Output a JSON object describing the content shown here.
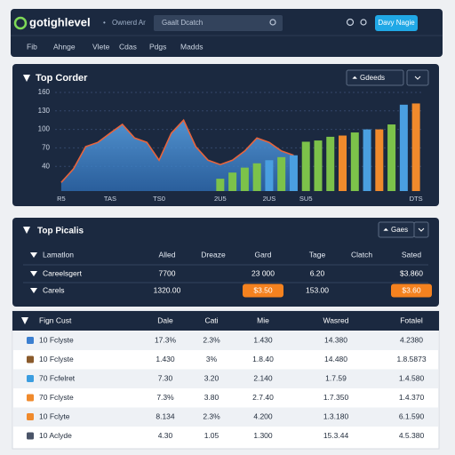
{
  "nav": {
    "brand": "gotighlevel",
    "separator": "•",
    "context": "Ownerd Ar",
    "search": "Gaalt Dcatch",
    "button": "Davy Nagie",
    "tabs": [
      "Fib",
      "Ahnge",
      "Vlete",
      "Cdas",
      "Pdgs",
      "Madds"
    ]
  },
  "panel1": {
    "title": "Top Corder",
    "button": "Gdeeds",
    "chart": {
      "type": "combo",
      "categories": [
        "R5",
        null,
        null,
        null,
        "TAS",
        null,
        null,
        null,
        "TS0",
        null,
        null,
        null,
        null,
        "2U5",
        null,
        null,
        null,
        "2US",
        null,
        null,
        "SU5",
        null,
        null,
        null,
        null,
        null,
        null,
        null,
        null,
        "DTS"
      ],
      "series": [
        {
          "type": "area",
          "color": "#4a8fd6",
          "line_color": "#e8643c",
          "values": [
            14,
            36,
            72,
            79,
            94,
            108,
            86,
            79,
            50,
            94,
            115,
            72,
            50,
            43,
            50,
            65,
            86,
            79,
            65,
            58,
            null,
            null,
            null,
            null,
            null,
            null,
            null,
            null,
            null,
            null
          ]
        },
        {
          "type": "bar",
          "colors": [
            null,
            null,
            null,
            null,
            null,
            null,
            null,
            null,
            null,
            null,
            null,
            null,
            null,
            "#7cc24a",
            "#7cc24a",
            "#7cc24a",
            "#7cc24a",
            "#4a9fe0",
            "#7cc24a",
            "#4a9fe0",
            "#7cc24a",
            "#7cc24a",
            "#7cc24a",
            "#f08a2c",
            "#7cc24a",
            "#4a9fe0",
            "#f08a2c",
            "#7cc24a",
            "#4a9fe0",
            "#f08a2c"
          ],
          "values": [
            null,
            null,
            null,
            null,
            null,
            null,
            null,
            null,
            null,
            null,
            null,
            null,
            null,
            20,
            30,
            38,
            45,
            50,
            55,
            58,
            80,
            82,
            88,
            90,
            95,
            100,
            100,
            108,
            140,
            142
          ]
        }
      ],
      "ylim": [
        0,
        170
      ],
      "yticks": [
        40,
        70,
        100,
        130,
        160
      ],
      "grid": true
    }
  },
  "panel2": {
    "title": "Top Picalis",
    "button": "Gaes",
    "columns": [
      "Lamatlon",
      "Alled",
      "Dreaze",
      "Gard",
      "Tage",
      "Clatch",
      "Sated"
    ],
    "rows": [
      [
        "Careelsgert",
        "7700",
        null,
        "23 000",
        "6.20",
        null,
        "$3.860"
      ],
      [
        "Carels",
        "1320.00",
        null,
        {
          "text": "$3.50",
          "fill": "#f5821f"
        },
        "153.00",
        null,
        {
          "text": "$3.60",
          "fill": "#f5821f"
        }
      ]
    ]
  },
  "panel3": {
    "columns": [
      "Fign Cust",
      "Dale",
      "Cati",
      "Mie",
      "Wasred",
      "Fotalel"
    ],
    "rows": [
      [
        "10 Fclyste",
        "17.3%",
        "2.3%",
        "1.430",
        "14.380",
        "4.2380"
      ],
      [
        "10 Fclyste",
        "1.430",
        "3%",
        "1.8.40",
        "14.480",
        "1.8.5873"
      ],
      [
        "70 Fcfelret",
        "7.30",
        "3.20",
        "2.140",
        "1.7.59",
        "1.4.580"
      ],
      [
        "70 Fclyste",
        "7.3%",
        "3.80",
        "2.7.40",
        "1.7.350",
        "1.4.370"
      ],
      [
        "10 Fclyte",
        "8.134",
        "2.3%",
        "4.200",
        "1.3.180",
        "6.1.590"
      ],
      [
        "10 Aclyde",
        "4.30",
        "1.05",
        "1.300",
        "15.3.44",
        "4.5.380"
      ]
    ]
  }
}
